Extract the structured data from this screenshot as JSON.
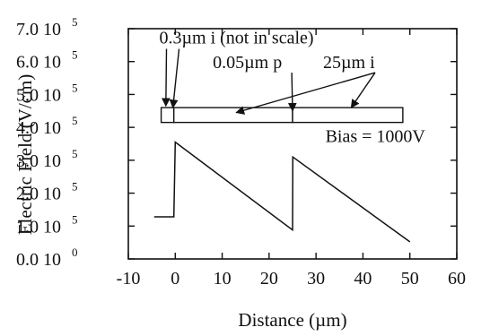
{
  "chart_data": {
    "type": "line",
    "title": "",
    "xlabel": "Distance (µm)",
    "ylabel": "Electric Field (V/cm)",
    "xlim": [
      -10,
      60
    ],
    "ylim": [
      0,
      700000
    ],
    "grid": false,
    "x_ticks": [
      -10,
      0,
      10,
      20,
      30,
      40,
      50,
      60
    ],
    "x_tick_labels": [
      "-10",
      "0",
      "10",
      "20",
      "30",
      "40",
      "50",
      "60"
    ],
    "y_ticks": [
      {
        "value": 0,
        "mantissa": "0.0 10",
        "exponent": "0"
      },
      {
        "value": 100000,
        "mantissa": "1.0 10",
        "exponent": "5"
      },
      {
        "value": 200000,
        "mantissa": "2.0 10",
        "exponent": "5"
      },
      {
        "value": 300000,
        "mantissa": "3.0 10",
        "exponent": "5"
      },
      {
        "value": 400000,
        "mantissa": "4.0 10",
        "exponent": "5"
      },
      {
        "value": 500000,
        "mantissa": "5.0 10",
        "exponent": "5"
      },
      {
        "value": 600000,
        "mantissa": "6.0 10",
        "exponent": "5"
      },
      {
        "value": 700000,
        "mantissa": "7.0 10",
        "exponent": "5"
      }
    ],
    "series": [
      {
        "x": [
          -4.5,
          -0.3,
          0,
          25,
          25,
          25.05,
          50
        ],
        "y": [
          128000,
          128000,
          355000,
          88000,
          88000,
          310000,
          52000
        ]
      }
    ],
    "layers": [
      {
        "x0": -3.0,
        "x1": -0.3
      },
      {
        "x0": -0.3,
        "x1": 25.0
      },
      {
        "x0": 25.0,
        "x1": 48.5
      }
    ],
    "layer_y_range": [
      415000,
      460000
    ],
    "annotations": [
      {
        "text": "0.3µm i (not in scale)",
        "x": -3.4,
        "y": 655000,
        "arrows_to": [
          [
            -2.0,
            465000
          ],
          [
            -0.5,
            460000
          ]
        ]
      },
      {
        "text": "0.05µm p",
        "x": 8.0,
        "y": 580000,
        "arrows_to": [
          [
            25.0,
            450000
          ]
        ]
      },
      {
        "text": "25µm i",
        "x": 31.5,
        "y": 580000,
        "arrows_to": [
          [
            13.0,
            445000
          ],
          [
            37.5,
            460000
          ]
        ]
      },
      {
        "text": "Bias = 1000V",
        "x": 32.0,
        "y": 355000,
        "arrows_to": []
      }
    ]
  }
}
